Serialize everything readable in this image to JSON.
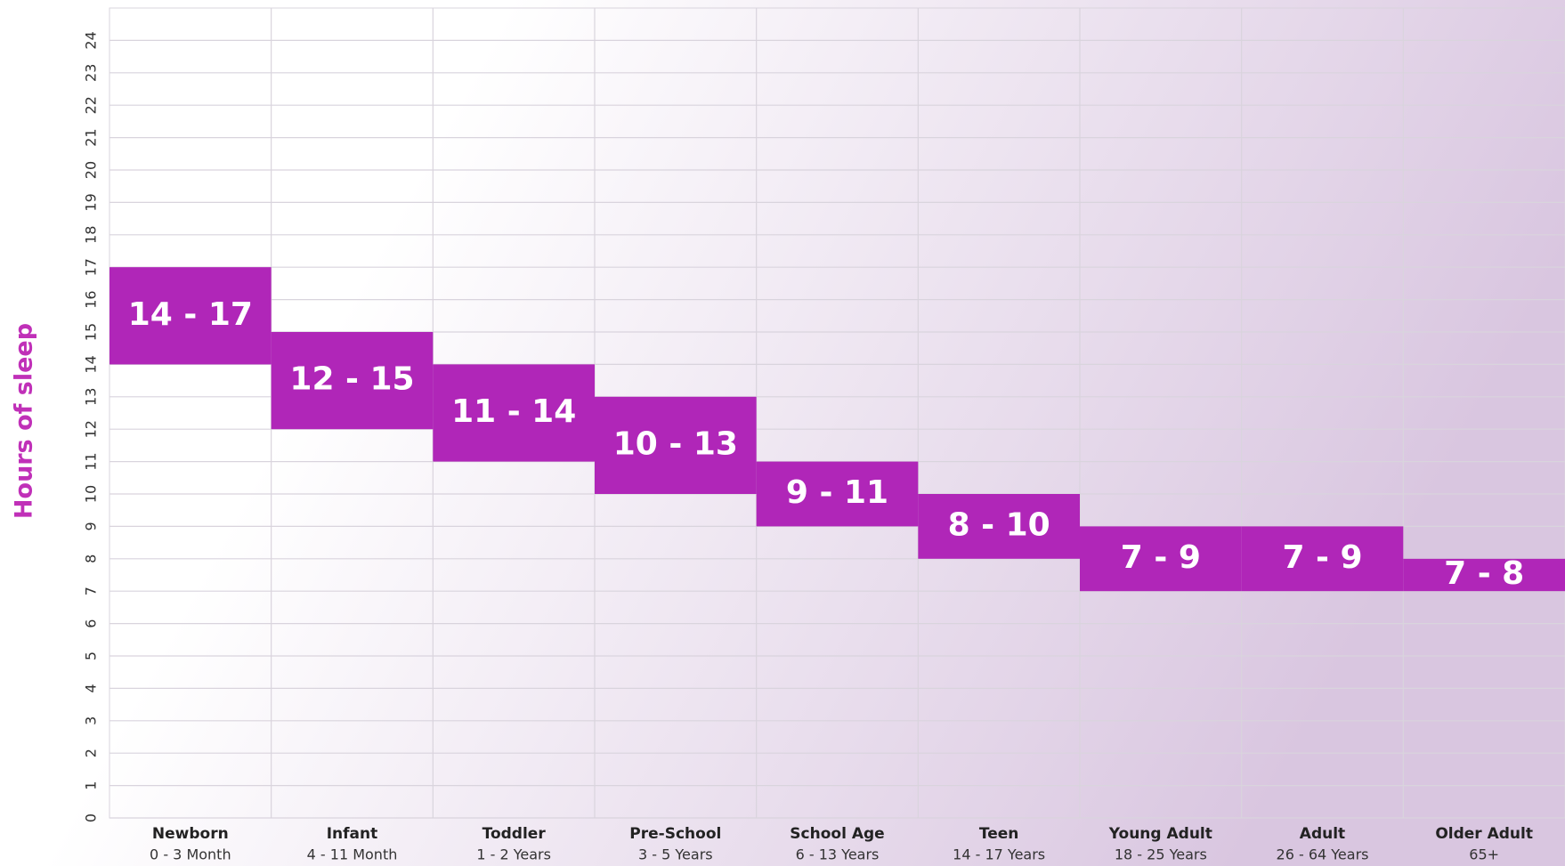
{
  "chart_data": {
    "type": "range_bar",
    "y_label": "Hours of sleep",
    "categories": [
      "Newborn",
      "Infant",
      "Toddler",
      "Pre-School",
      "School Age",
      "Teen",
      "Young Adult",
      "Adult",
      "Older Adult"
    ],
    "age_ranges": [
      "0 - 3 Month",
      "4 - 11 Month",
      "1 - 2 Years",
      "3 - 5 Years",
      "6 - 13 Years",
      "14 - 17 Years",
      "18 - 25 Years",
      "26 - 64 Years",
      "65+"
    ],
    "low": [
      14,
      12,
      11,
      10,
      9,
      8,
      7,
      7,
      7
    ],
    "high": [
      17,
      15,
      14,
      13,
      11,
      10,
      9,
      9,
      8
    ],
    "value_labels": [
      "14 - 17",
      "12 - 15",
      "11 - 14",
      "10 - 13",
      "9 - 11",
      "8 - 10",
      "7 - 9",
      "7 - 9",
      "7 - 8"
    ],
    "color": "#b026b8",
    "ylim": [
      0,
      25
    ],
    "yticks": [
      0,
      1,
      2,
      3,
      4,
      5,
      6,
      7,
      8,
      9,
      10,
      11,
      12,
      13,
      14,
      15,
      16,
      17,
      18,
      19,
      20,
      21,
      22,
      23,
      24
    ],
    "grid": true
  }
}
